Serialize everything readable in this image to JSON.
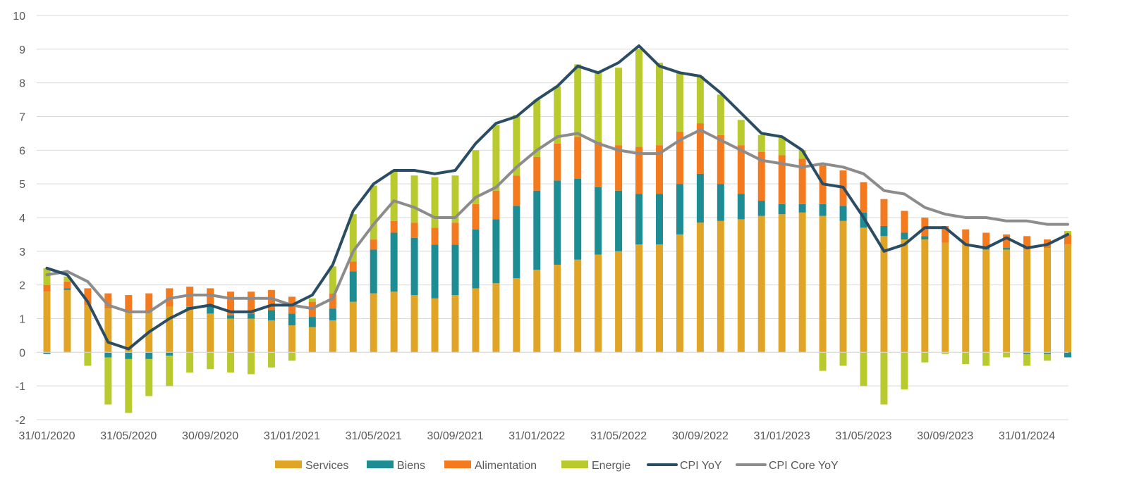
{
  "chart_data": {
    "type": "bar",
    "stacked": true,
    "ylim": [
      -2,
      10
    ],
    "yticks": [
      "-2",
      "-1",
      "0",
      "1",
      "2",
      "3",
      "4",
      "5",
      "6",
      "7",
      "8",
      "9",
      "10"
    ],
    "grid": true,
    "legend_position": "bottom",
    "x_labels": [
      {
        "index": 0,
        "label": "31/01/2020"
      },
      {
        "index": 4,
        "label": "31/05/2020"
      },
      {
        "index": 8,
        "label": "30/09/2020"
      },
      {
        "index": 12,
        "label": "31/01/2021"
      },
      {
        "index": 16,
        "label": "31/05/2021"
      },
      {
        "index": 20,
        "label": "30/09/2021"
      },
      {
        "index": 24,
        "label": "31/01/2022"
      },
      {
        "index": 28,
        "label": "31/05/2022"
      },
      {
        "index": 32,
        "label": "30/09/2022"
      },
      {
        "index": 36,
        "label": "31/01/2023"
      },
      {
        "index": 40,
        "label": "31/05/2023"
      },
      {
        "index": 44,
        "label": "30/09/2023"
      },
      {
        "index": 48,
        "label": "31/01/2024"
      }
    ],
    "months": [
      "31/01/2020",
      "29/02/2020",
      "31/03/2020",
      "30/04/2020",
      "31/05/2020",
      "30/06/2020",
      "31/07/2020",
      "31/08/2020",
      "30/09/2020",
      "31/10/2020",
      "30/11/2020",
      "31/12/2020",
      "31/01/2021",
      "28/02/2021",
      "31/03/2021",
      "30/04/2021",
      "31/05/2021",
      "30/06/2021",
      "31/07/2021",
      "31/08/2021",
      "30/09/2021",
      "31/10/2021",
      "30/11/2021",
      "31/12/2021",
      "31/01/2022",
      "28/02/2022",
      "31/03/2022",
      "30/04/2022",
      "31/05/2022",
      "30/06/2022",
      "31/07/2022",
      "31/08/2022",
      "30/09/2022",
      "31/10/2022",
      "30/11/2022",
      "31/12/2022",
      "31/01/2023",
      "28/02/2023",
      "31/03/2023",
      "30/04/2023",
      "31/05/2023",
      "30/06/2023",
      "31/07/2023",
      "31/08/2023",
      "30/09/2023",
      "31/10/2023",
      "30/11/2023",
      "31/12/2023",
      "31/01/2024",
      "29/02/2024",
      "31/03/2024"
    ],
    "bar_series": [
      {
        "name": "Services",
        "color": "#E0A526",
        "values": [
          1.8,
          1.85,
          1.4,
          1.3,
          1.2,
          1.2,
          1.35,
          1.3,
          1.15,
          1.0,
          1.0,
          0.95,
          0.8,
          0.75,
          0.95,
          1.5,
          1.75,
          1.8,
          1.7,
          1.6,
          1.7,
          1.9,
          2.05,
          2.2,
          2.45,
          2.6,
          2.75,
          2.9,
          3.0,
          3.2,
          3.2,
          3.5,
          3.85,
          3.9,
          3.95,
          4.05,
          4.1,
          4.15,
          4.05,
          3.9,
          3.7,
          3.45,
          3.35,
          3.35,
          3.25,
          3.2,
          3.05,
          3.05,
          3.05,
          3.1,
          3.2
        ]
      },
      {
        "name": "Biens",
        "color": "#1E8C93",
        "values": [
          -0.05,
          0.05,
          0.0,
          -0.15,
          -0.2,
          -0.2,
          -0.1,
          0.05,
          0.25,
          0.1,
          0.15,
          0.3,
          0.35,
          0.3,
          0.35,
          0.9,
          1.3,
          1.75,
          1.7,
          1.6,
          1.5,
          1.75,
          1.9,
          2.15,
          2.35,
          2.5,
          2.4,
          2.0,
          1.8,
          1.5,
          1.5,
          1.5,
          1.45,
          1.1,
          0.75,
          0.45,
          0.3,
          0.25,
          0.35,
          0.45,
          0.45,
          0.3,
          0.2,
          0.1,
          0.0,
          0.0,
          0.05,
          0.05,
          -0.05,
          -0.05,
          -0.15
        ]
      },
      {
        "name": "Alimentation",
        "color": "#F47A20",
        "values": [
          0.2,
          0.2,
          0.5,
          0.45,
          0.5,
          0.55,
          0.55,
          0.6,
          0.5,
          0.7,
          0.65,
          0.6,
          0.5,
          0.45,
          0.45,
          0.3,
          0.3,
          0.35,
          0.45,
          0.5,
          0.65,
          0.75,
          0.85,
          0.9,
          1.0,
          1.1,
          1.25,
          1.35,
          1.35,
          1.4,
          1.45,
          1.55,
          1.5,
          1.45,
          1.45,
          1.45,
          1.45,
          1.35,
          1.15,
          1.05,
          0.9,
          0.8,
          0.65,
          0.55,
          0.5,
          0.45,
          0.45,
          0.4,
          0.4,
          0.25,
          0.3
        ]
      },
      {
        "name": "Energie",
        "color": "#B9CA2F",
        "values": [
          0.5,
          0.15,
          -0.4,
          -1.4,
          -1.6,
          -1.1,
          -0.9,
          -0.6,
          -0.5,
          -0.6,
          -0.65,
          -0.45,
          -0.25,
          0.1,
          0.8,
          1.4,
          1.6,
          1.5,
          1.4,
          1.5,
          1.4,
          1.6,
          1.95,
          1.8,
          1.7,
          1.7,
          2.15,
          2.1,
          2.3,
          2.9,
          2.45,
          1.75,
          1.4,
          1.2,
          0.75,
          0.5,
          0.55,
          0.25,
          -0.55,
          -0.4,
          -1.0,
          -1.55,
          -1.1,
          -0.3,
          -0.05,
          -0.35,
          -0.4,
          -0.15,
          -0.35,
          -0.2,
          0.1
        ]
      }
    ],
    "line_series": [
      {
        "name": "CPI YoY",
        "color": "#2A4D63",
        "values": [
          2.5,
          2.3,
          1.5,
          0.3,
          0.1,
          0.6,
          1.0,
          1.3,
          1.4,
          1.2,
          1.2,
          1.4,
          1.4,
          1.7,
          2.6,
          4.2,
          5.0,
          5.4,
          5.4,
          5.3,
          5.4,
          6.2,
          6.8,
          7.0,
          7.5,
          7.9,
          8.5,
          8.3,
          8.6,
          9.1,
          8.5,
          8.3,
          8.2,
          7.7,
          7.1,
          6.5,
          6.4,
          6.0,
          5.0,
          4.9,
          4.0,
          3.0,
          3.2,
          3.7,
          3.7,
          3.2,
          3.1,
          3.4,
          3.1,
          3.2,
          3.5
        ]
      },
      {
        "name": "CPI Core YoY",
        "color": "#8C8C8C",
        "values": [
          2.3,
          2.4,
          2.1,
          1.4,
          1.2,
          1.2,
          1.6,
          1.7,
          1.7,
          1.6,
          1.6,
          1.6,
          1.4,
          1.3,
          1.6,
          3.0,
          3.8,
          4.5,
          4.3,
          4.0,
          4.0,
          4.6,
          4.9,
          5.5,
          6.0,
          6.4,
          6.5,
          6.2,
          6.0,
          5.9,
          5.9,
          6.3,
          6.6,
          6.3,
          6.0,
          5.7,
          5.6,
          5.5,
          5.6,
          5.5,
          5.3,
          4.8,
          4.7,
          4.3,
          4.1,
          4.0,
          4.0,
          3.9,
          3.9,
          3.8,
          3.8
        ]
      }
    ]
  },
  "legend": [
    {
      "name": "Services",
      "kind": "box",
      "color": "#E0A526"
    },
    {
      "name": "Biens",
      "kind": "box",
      "color": "#1E8C93"
    },
    {
      "name": "Alimentation",
      "kind": "box",
      "color": "#F47A20"
    },
    {
      "name": "Energie",
      "kind": "box",
      "color": "#B9CA2F"
    },
    {
      "name": "CPI YoY",
      "kind": "line",
      "color": "#2A4D63"
    },
    {
      "name": "CPI Core YoY",
      "kind": "line",
      "color": "#8C8C8C"
    }
  ]
}
